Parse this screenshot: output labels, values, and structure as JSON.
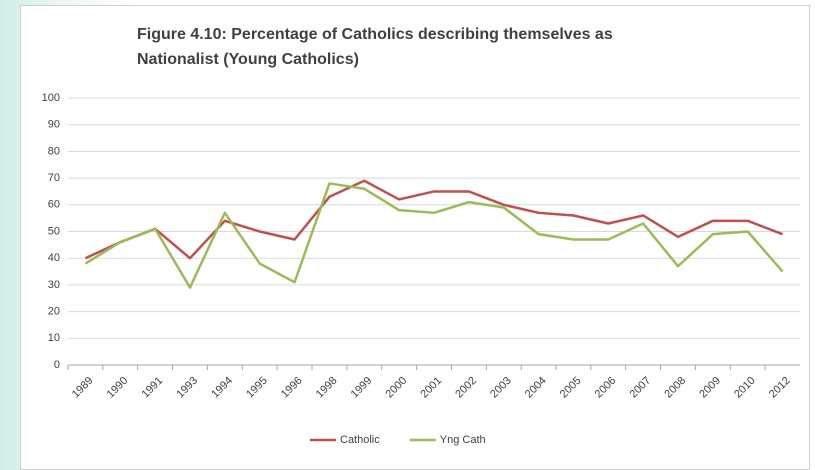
{
  "chart_data": {
    "type": "line",
    "title": "Figure 4.10: Percentage of Catholics describing themselves as Nationalist (Young Catholics)",
    "categories": [
      "1989",
      "1990",
      "1991",
      "1993",
      "1994",
      "1995",
      "1996",
      "1998",
      "1999",
      "2000",
      "2001",
      "2002",
      "2003",
      "2004",
      "2005",
      "2006",
      "2007",
      "2008",
      "2009",
      "2010",
      "2012"
    ],
    "series": [
      {
        "name": "Catholic",
        "color": "#c0504d",
        "values": [
          40,
          46,
          51,
          40,
          54,
          50,
          47,
          63,
          69,
          62,
          65,
          65,
          60,
          57,
          56,
          53,
          56,
          48,
          54,
          54,
          49
        ]
      },
      {
        "name": "Yng Cath",
        "color": "#9bbb59",
        "values": [
          38,
          46,
          51,
          29,
          57,
          38,
          31,
          68,
          66,
          58,
          57,
          61,
          59,
          49,
          47,
          47,
          53,
          37,
          49,
          50,
          35
        ]
      }
    ],
    "ylim": [
      0,
      100
    ],
    "yticks": [
      0,
      10,
      20,
      30,
      40,
      50,
      60,
      70,
      80,
      90,
      100
    ],
    "grid": true,
    "legend": "bottom"
  }
}
